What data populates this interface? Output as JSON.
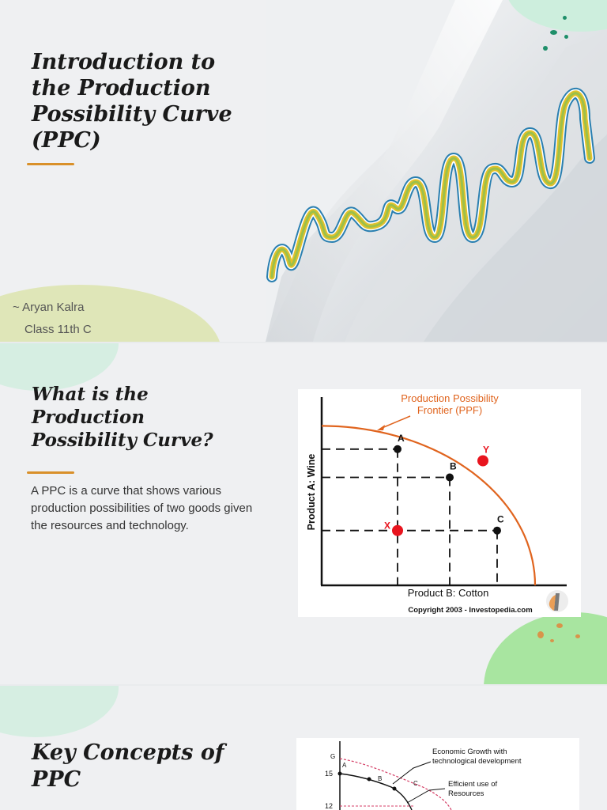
{
  "slides": [
    {
      "title_lines": [
        "Introduction to",
        "the Production",
        "Possibility Curve",
        "(PPC)"
      ],
      "author_line": "~ Aryan Kalra",
      "class_line": "Class 11th C"
    },
    {
      "title_lines": [
        "What is the",
        "Production",
        "Possibility Curve?"
      ],
      "body": "A PPC is a curve that shows various production possibilities of two goods given the resources and technology.",
      "figure": {
        "title_line1": "Production Possibility",
        "title_line2": "Frontier (PPF)",
        "ylabel": "Product A: Wine",
        "xlabel": "Product B: Cotton",
        "credit": "Copyright 2003 - Investopedia.com",
        "points": [
          {
            "label": "A",
            "x": 3.2,
            "y": 8.2
          },
          {
            "label": "B",
            "x": 5.4,
            "y": 6.5
          },
          {
            "label": "C",
            "x": 7.4,
            "y": 3.3
          },
          {
            "label": "X",
            "x": 3.2,
            "y": 3.3
          },
          {
            "label": "Y",
            "x": 6.8,
            "y": 7.5
          }
        ],
        "colors": {
          "curve": "#e0641e",
          "inside_outside": "#e8141e",
          "on_curve": "#111111"
        }
      }
    },
    {
      "title_lines": [
        "Key Concepts of",
        "PPC"
      ],
      "figure": {
        "annotation1_line1": "Economic Growth with",
        "annotation1_line2": "technological development",
        "annotation2_line1": "Efficient use of",
        "annotation2_line2": "Resources",
        "ticks": [
          "15",
          "12"
        ],
        "labels": [
          "G",
          "A",
          "B",
          "C"
        ]
      }
    }
  ]
}
